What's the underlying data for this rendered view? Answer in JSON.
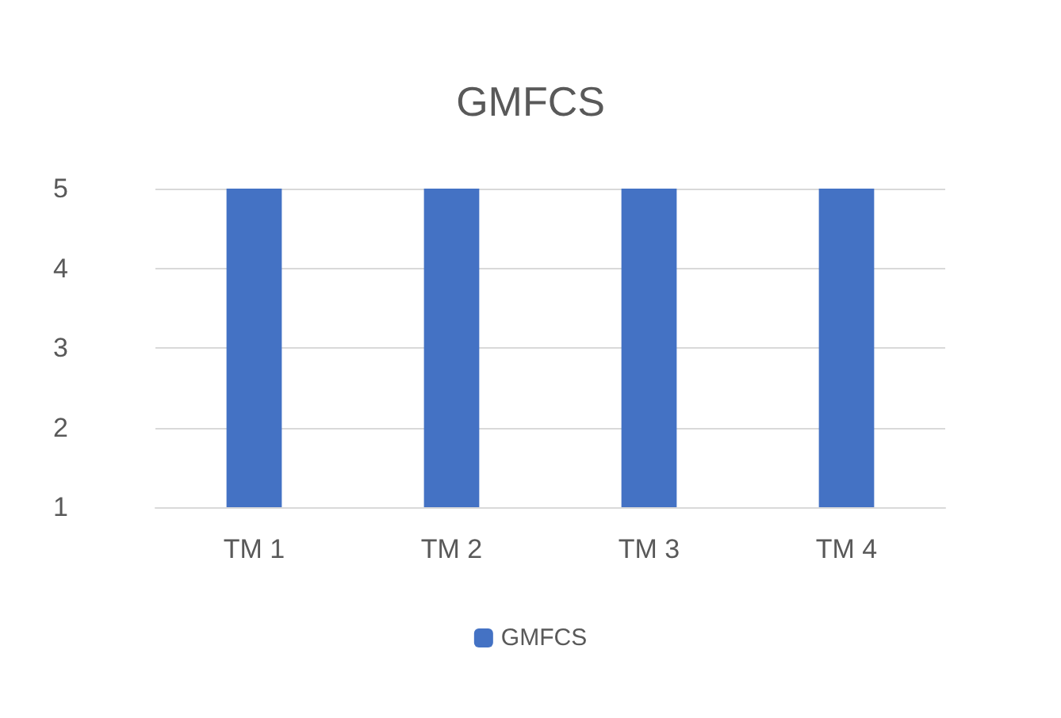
{
  "chart_data": {
    "type": "bar",
    "title": "GMFCS",
    "categories": [
      "TM 1",
      "TM 2",
      "TM 3",
      "TM 4"
    ],
    "series": [
      {
        "name": "GMFCS",
        "color": "#4472c4",
        "values": [
          5,
          5,
          5,
          5
        ]
      }
    ],
    "ylim": [
      1,
      5
    ],
    "yticks": [
      1,
      2,
      3,
      4,
      5
    ],
    "grid": "y",
    "legend": "bottom"
  }
}
